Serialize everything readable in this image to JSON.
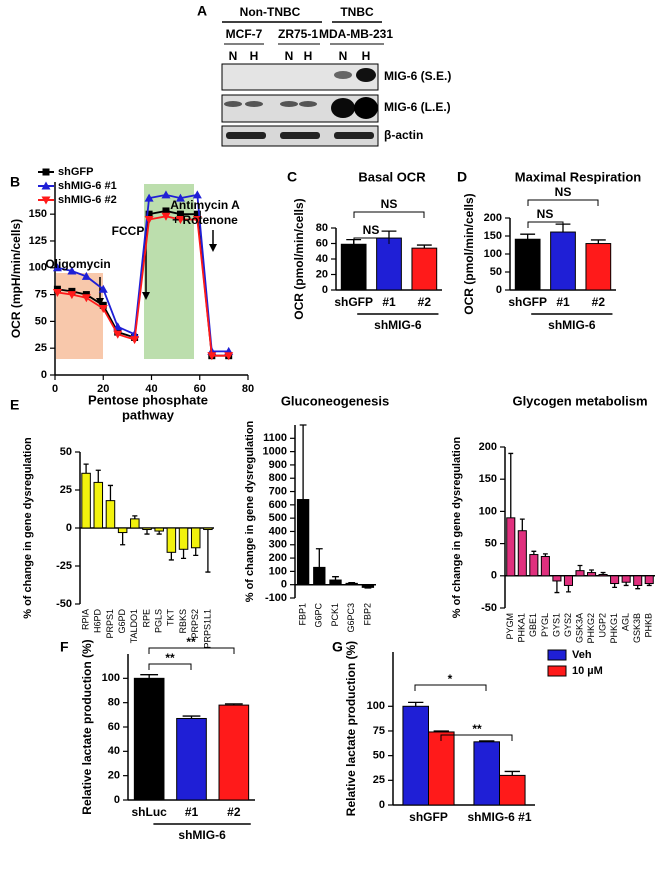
{
  "blot": {
    "panel": "A",
    "groups": [
      "Non-TNBC",
      "TNBC"
    ],
    "cell_lines": [
      "MCF-7",
      "ZR75-1",
      "MDA-MB-231"
    ],
    "lanes": [
      "N",
      "H",
      "N",
      "H",
      "N",
      "H"
    ],
    "bands": [
      "MIG-6 (S.E.)",
      "MIG-6 (L.E.)",
      "β-actin"
    ]
  },
  "chart_data": [
    {
      "type": "line",
      "panel": "B",
      "y_label": "OCR (mpH/min/cells)",
      "x": [
        1,
        7,
        13,
        20,
        26,
        33,
        39,
        46,
        52,
        59,
        65,
        72
      ],
      "xlim": [
        0,
        80
      ],
      "xticks": [
        0,
        20,
        40,
        60,
        80
      ],
      "ylim": [
        0,
        180
      ],
      "yticks": [
        0,
        25,
        50,
        75,
        100,
        125,
        150
      ],
      "series": [
        {
          "name": "shGFP",
          "color": "#000000",
          "values": [
            80,
            78,
            75,
            65,
            40,
            35,
            150,
            153,
            150,
            150,
            18,
            18
          ]
        },
        {
          "name": "shMIG-6 #1",
          "color": "#1f1fd6",
          "values": [
            100,
            97,
            92,
            80,
            45,
            38,
            165,
            168,
            165,
            168,
            22,
            22
          ]
        },
        {
          "name": "shMIG-6 #2",
          "color": "#ff1a1a",
          "values": [
            77,
            75,
            72,
            62,
            38,
            33,
            145,
            148,
            145,
            145,
            18,
            18
          ]
        }
      ],
      "annotations": [
        "Oligomycin",
        "FCCP",
        "Antimycin A",
        "+ Rotenone"
      ]
    },
    {
      "type": "bar",
      "panel": "C",
      "title": "Basal OCR",
      "y_label": "OCR (pmol/min/cells)",
      "categories": [
        "shGFP",
        "#1",
        "#2"
      ],
      "values": [
        59,
        67,
        54
      ],
      "errors": [
        6,
        9,
        4
      ],
      "colors": [
        "#000000",
        "#1f1fd6",
        "#ff1a1a"
      ],
      "ylim": [
        0,
        80
      ],
      "yticks": [
        0,
        20,
        40,
        60,
        80
      ],
      "group_label": "shMIG-6",
      "annotations": [
        "NS",
        "NS"
      ]
    },
    {
      "type": "bar",
      "panel": "D",
      "title": "Maximal Respiration",
      "y_label": "OCR (pmol/min/cells)",
      "categories": [
        "shGFP",
        "#1",
        "#2"
      ],
      "values": [
        141,
        161,
        129
      ],
      "errors": [
        14,
        22,
        10
      ],
      "colors": [
        "#000000",
        "#1f1fd6",
        "#ff1a1a"
      ],
      "ylim": [
        0,
        200
      ],
      "yticks": [
        0,
        50,
        100,
        150,
        200
      ],
      "group_label": "shMIG-6",
      "annotations": [
        "NS",
        "NS"
      ]
    },
    {
      "type": "bar",
      "panel": "E",
      "title": [
        "Pentose phosphate",
        "pathway"
      ],
      "y_label": "% of change in gene dysregulation",
      "categories": [
        "RPIA",
        "H6PD",
        "PRPS1",
        "G6PD",
        "TALDO1",
        "RPE",
        "PGLS",
        "TKT",
        "RBKS",
        "PRPS2",
        "PRPS1L1"
      ],
      "values": [
        36,
        30,
        18,
        -3,
        6,
        -1,
        -2,
        -16,
        -14,
        -13,
        -1
      ],
      "errors": [
        6,
        8,
        10,
        8,
        2,
        3,
        2,
        5,
        6,
        5,
        28
      ],
      "color": "#f2f20d",
      "ylim": [
        -50,
        50
      ],
      "yticks": [
        -50,
        -25,
        0,
        25,
        50
      ]
    },
    {
      "type": "bar",
      "title": [
        "Gluconeogenesis"
      ],
      "y_label": "% of change in gene dysregulation",
      "categories": [
        "FBP1",
        "G6PC",
        "PCK1",
        "G6PC3",
        "FBP2"
      ],
      "values": [
        640,
        130,
        35,
        10,
        -20
      ],
      "errors": [
        560,
        140,
        25,
        5,
        5
      ],
      "color": "#000000",
      "ylim": [
        -100,
        1200
      ],
      "yticks": [
        -100,
        0,
        100,
        200,
        300,
        400,
        500,
        600,
        700,
        800,
        900,
        1000,
        1100
      ]
    },
    {
      "type": "bar",
      "title": [
        "Glycogen metabolism"
      ],
      "y_label": "% of change in gene dysregulation",
      "categories": [
        "PYGM",
        "PHKA1",
        "GBE1",
        "PYGL",
        "GYS1",
        "GYS2",
        "GSK3A",
        "PHKG2",
        "UGP2",
        "PHKG1",
        "AGL",
        "GSK3B",
        "PHKB"
      ],
      "values": [
        90,
        70,
        33,
        30,
        -8,
        -15,
        8,
        5,
        2,
        -12,
        -10,
        -15,
        -12
      ],
      "errors": [
        100,
        18,
        5,
        4,
        18,
        10,
        8,
        4,
        3,
        6,
        5,
        5,
        3
      ],
      "color": "#e0307e",
      "ylim": [
        -50,
        200
      ],
      "yticks": [
        -50,
        0,
        50,
        100,
        150,
        200
      ]
    },
    {
      "type": "bar",
      "panel": "F",
      "y_label": "Relative lactate  production (%)",
      "categories": [
        "shLuc",
        "#1",
        "#2"
      ],
      "values": [
        100,
        67,
        78
      ],
      "errors": [
        3,
        2,
        1
      ],
      "colors": [
        "#000000",
        "#1f1fd6",
        "#ff1a1a"
      ],
      "ylim": [
        0,
        120
      ],
      "yticks": [
        0,
        20,
        40,
        60,
        80,
        100
      ],
      "group_label": "shMIG-6",
      "annotations": [
        "**",
        "**"
      ]
    },
    {
      "type": "bar",
      "panel": "G",
      "y_label": "Relative lactate production (%)",
      "categories": [
        "shGFP",
        "shMIG-6 #1"
      ],
      "series": [
        {
          "name": "Veh",
          "color": "#1f1fd6",
          "values": [
            100,
            64
          ],
          "errors": [
            4,
            1
          ]
        },
        {
          "name": "10 µM",
          "color": "#ff1a1a",
          "values": [
            74,
            30
          ],
          "errors": [
            1,
            4
          ]
        }
      ],
      "ylim": [
        0,
        155
      ],
      "yticks": [
        0,
        25,
        50,
        75,
        100
      ],
      "annotations": [
        "*",
        "**"
      ]
    }
  ]
}
